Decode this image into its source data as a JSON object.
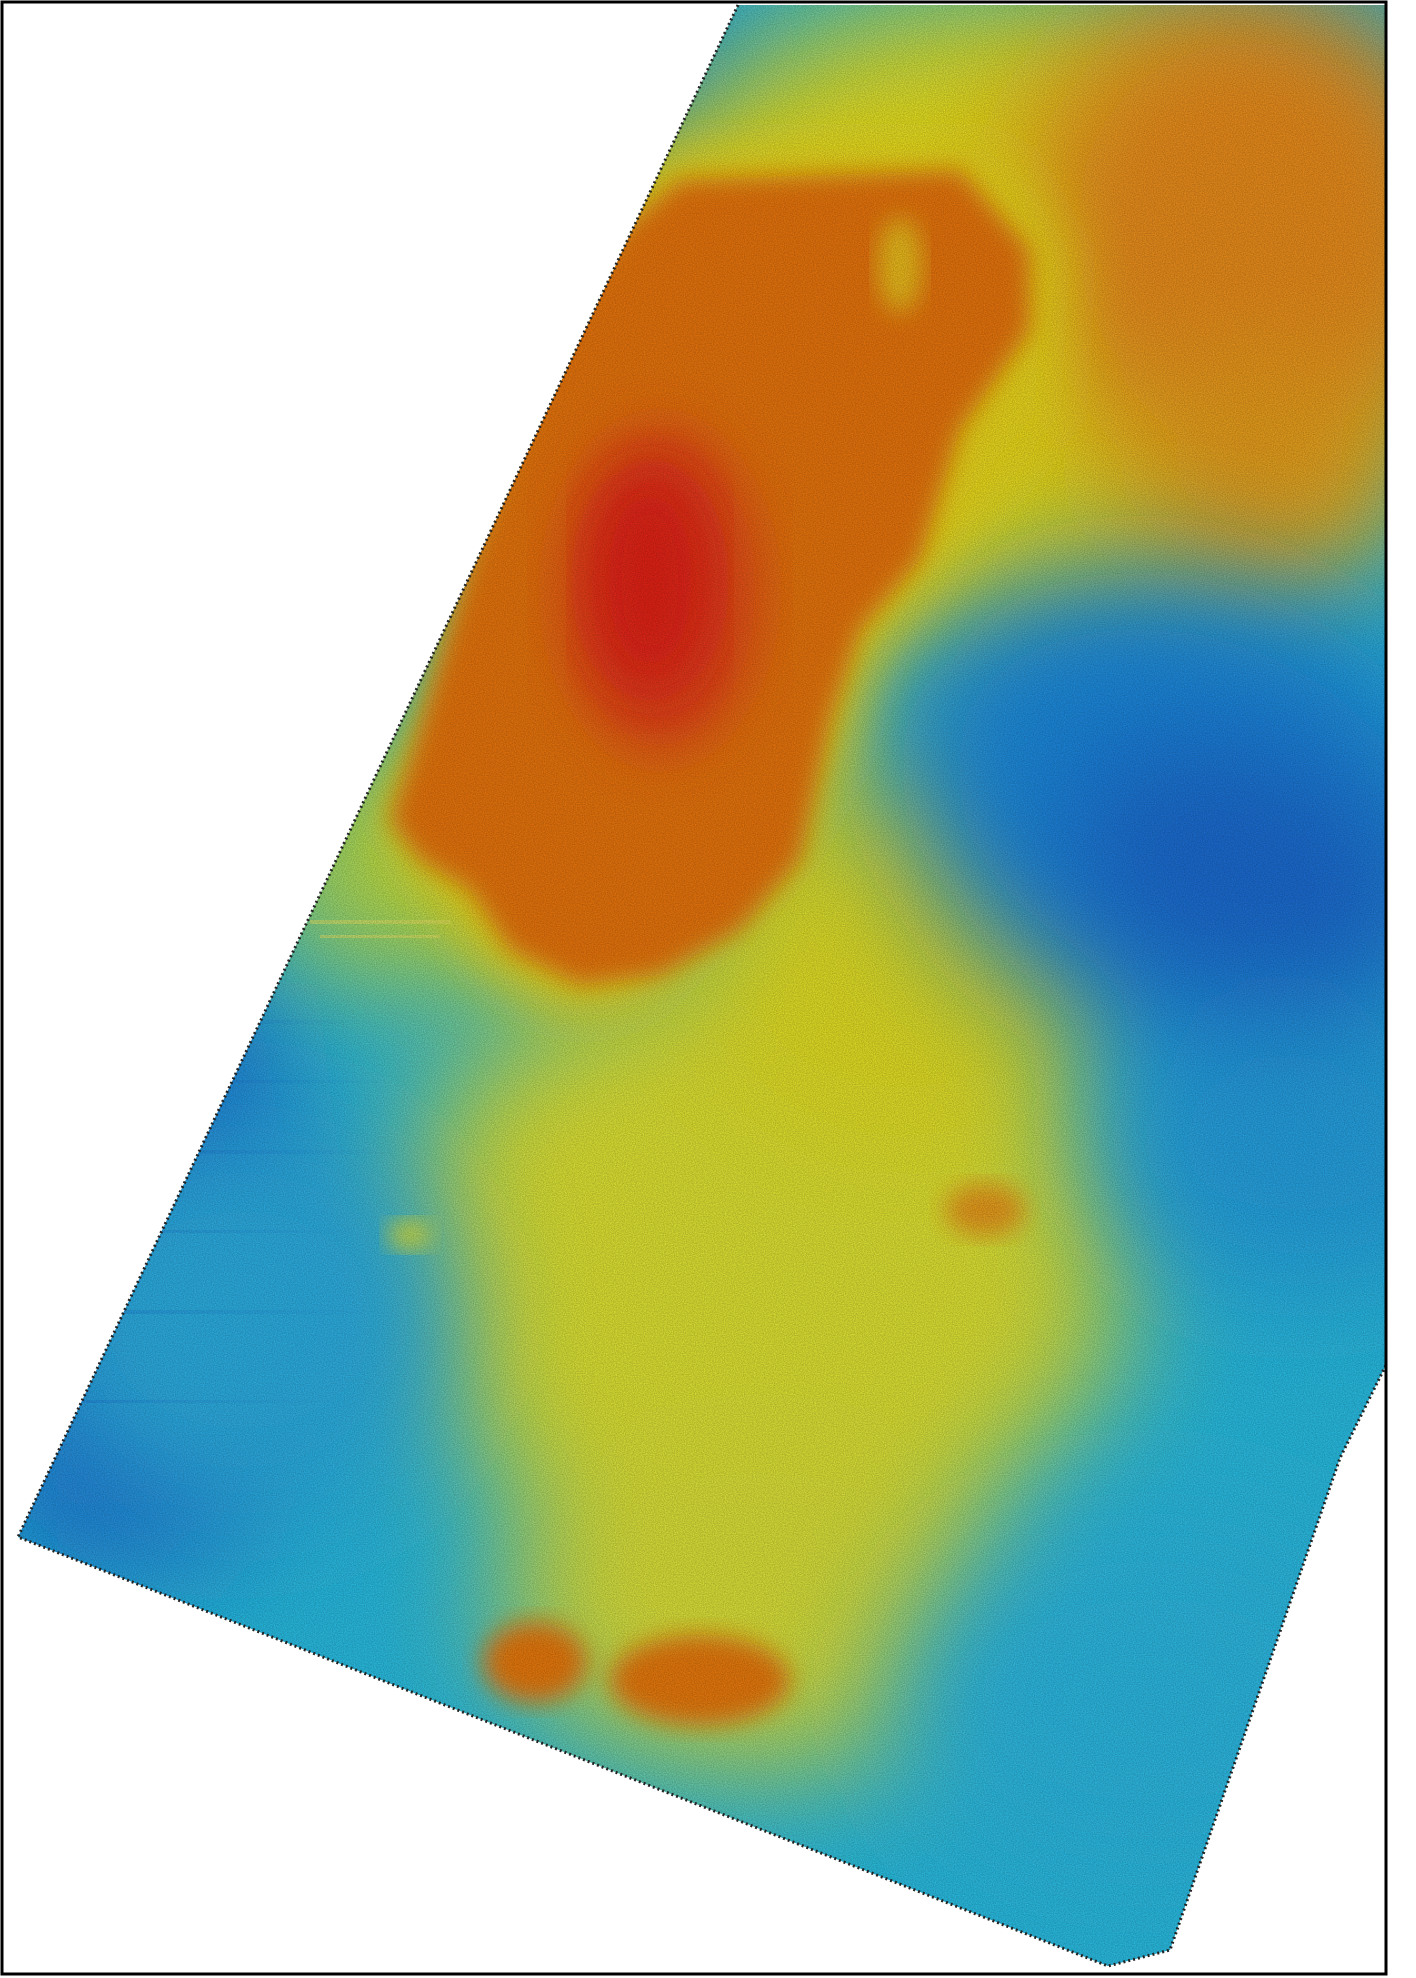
{
  "map": {
    "type": "elevation-heatmap",
    "colormap": "jet",
    "colors": {
      "frame": "#000000",
      "background": "#ffffff",
      "low": "#1a6fe0",
      "low_mid": "#23c8ee",
      "mid": "#f2ef1e",
      "high_mid": "#f58a10",
      "high": "#ee2a18"
    },
    "features": [
      "north-high-plateau",
      "central-western-basin-high",
      "eastern-low-trough",
      "southern-twin-mounds"
    ],
    "grid": false,
    "legend": "none"
  }
}
